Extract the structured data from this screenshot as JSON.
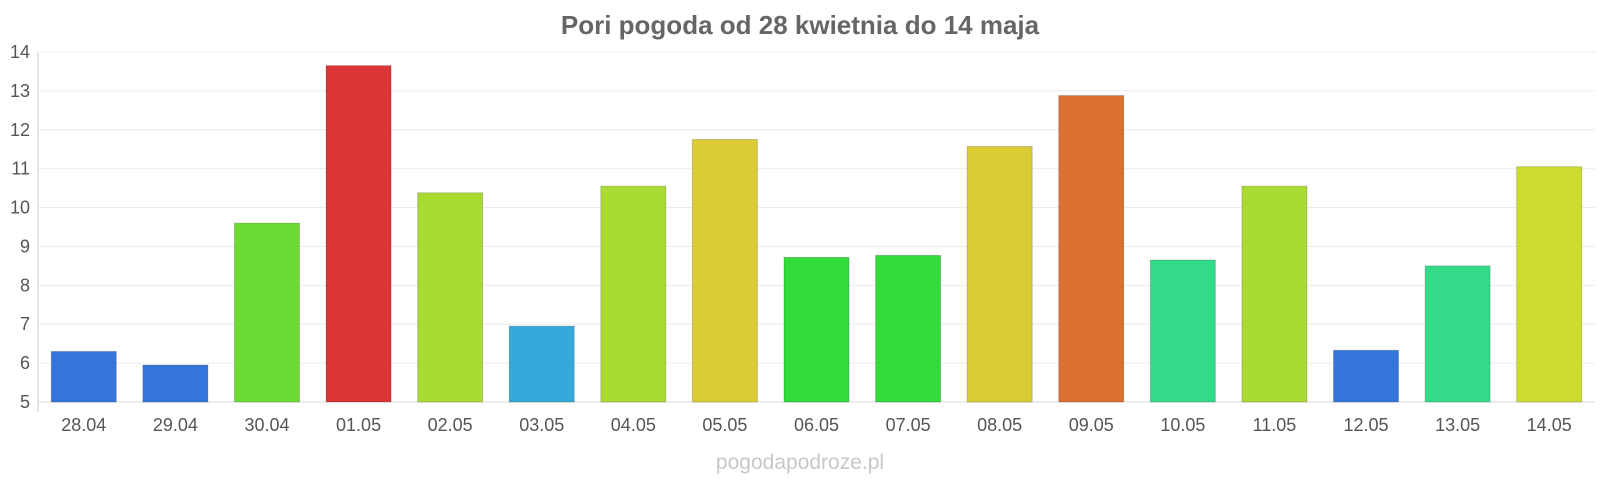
{
  "chart_data": {
    "type": "bar",
    "title": "Pori pogoda od 28 kwietnia do 14 maja",
    "xlabel": "",
    "ylabel": "",
    "categories": [
      "28.04",
      "29.04",
      "30.04",
      "01.05",
      "02.05",
      "03.05",
      "04.05",
      "05.05",
      "06.05",
      "07.05",
      "08.05",
      "09.05",
      "10.05",
      "11.05",
      "12.05",
      "13.05",
      "14.05"
    ],
    "values": [
      6.3,
      5.95,
      9.6,
      13.65,
      10.38,
      6.95,
      10.55,
      11.75,
      8.72,
      8.77,
      11.57,
      12.88,
      8.65,
      10.55,
      6.33,
      8.5,
      11.05
    ],
    "colors": [
      "#3375db",
      "#3375db",
      "#6cdb33",
      "#db3535",
      "#aadb33",
      "#36a9db",
      "#aadb33",
      "#dbcc33",
      "#33db3a",
      "#33db3a",
      "#dbcc33",
      "#dc7033",
      "#33db89",
      "#aadb33",
      "#3375db",
      "#33db89",
      "#ccdb2f"
    ],
    "ylim": [
      5,
      14
    ],
    "yticks": [
      5,
      6,
      7,
      8,
      9,
      10,
      11,
      12,
      13,
      14
    ],
    "grid": true,
    "legend": "none"
  },
  "watermark": "pogodapodroze.pl"
}
